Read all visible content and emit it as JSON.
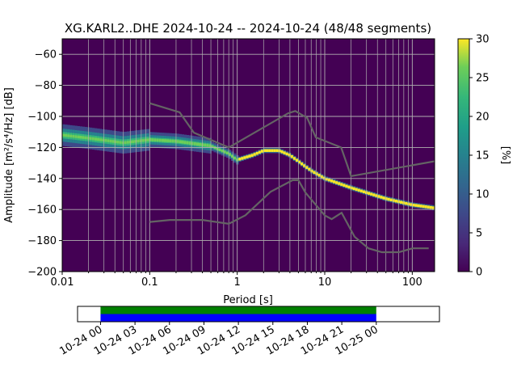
{
  "chart_data": [
    {
      "type": "heatmap",
      "title": "XG.KARL2..DHE   2024-10-24 -- 2024-10-24  (48/48 segments)",
      "xlabel": "Period [s]",
      "ylabel": "Amplitude [m²/s⁴/Hz] [dB]",
      "x_scale": "log",
      "xlim": [
        0.01,
        180
      ],
      "ylim": [
        -200,
        -50
      ],
      "x_tick_labels": [
        "0.01",
        "0.1",
        "1",
        "10",
        "100"
      ],
      "y_tick_labels": [
        "−200",
        "−180",
        "−160",
        "−140",
        "−120",
        "−100",
        "−80",
        "−60"
      ],
      "grid": true,
      "colormap": "viridis",
      "colorbar": {
        "label": "[%]",
        "range": [
          0,
          30
        ],
        "tick_labels": [
          "0",
          "5",
          "10",
          "15",
          "20",
          "25",
          "30"
        ]
      },
      "mode_curve": {
        "period": [
          0.01,
          0.02,
          0.05,
          0.1,
          0.2,
          0.5,
          0.8,
          1.0,
          1.5,
          2.0,
          3.0,
          4.0,
          5.0,
          7.0,
          10,
          20,
          50,
          100,
          180
        ],
        "amplitude_db": [
          -112,
          -114,
          -117,
          -115,
          -116,
          -119,
          -124,
          -128,
          -125,
          -122,
          -122,
          -125,
          -129,
          -135,
          -140,
          -146,
          -153,
          -157,
          -159
        ]
      },
      "noise_models": {
        "high": {
          "period": [
            0.1,
            0.22,
            0.32,
            0.8,
            3.8,
            4.6,
            6.3,
            7.9,
            15.4,
            20,
            354
          ],
          "amplitude_db": [
            -91.5,
            -97.4,
            -110.5,
            -120.0,
            -98.0,
            -96.5,
            -101.0,
            -113.5,
            -120.0,
            -138.5,
            -126.0
          ]
        },
        "low": {
          "period": [
            0.1,
            0.17,
            0.4,
            0.8,
            1.24,
            2.4,
            4.3,
            5.0,
            6.0,
            10.0,
            12.0,
            15.6,
            21.9,
            31.6,
            45,
            70,
            101,
            154
          ],
          "amplitude_db": [
            -168.0,
            -166.7,
            -166.7,
            -169.2,
            -163.7,
            -148.6,
            -141.1,
            -141.1,
            -149.0,
            -163.8,
            -166.2,
            -162.1,
            -177.5,
            -185.0,
            -187.5,
            -187.5,
            -185.0,
            -185.0
          ]
        }
      }
    },
    {
      "type": "timeline",
      "x_tick_labels": [
        "10-24 00",
        "10-24 03",
        "10-24 06",
        "10-24 09",
        "10-24 12",
        "10-24 15",
        "10-24 18",
        "10-24 21",
        "10-25 00"
      ],
      "xlim_hours": [
        -2,
        29.5
      ],
      "coverage_hours": [
        0,
        24
      ],
      "bands": [
        {
          "label": "",
          "color": "#008000"
        },
        {
          "label": "",
          "color": "#0000ff"
        }
      ]
    }
  ]
}
